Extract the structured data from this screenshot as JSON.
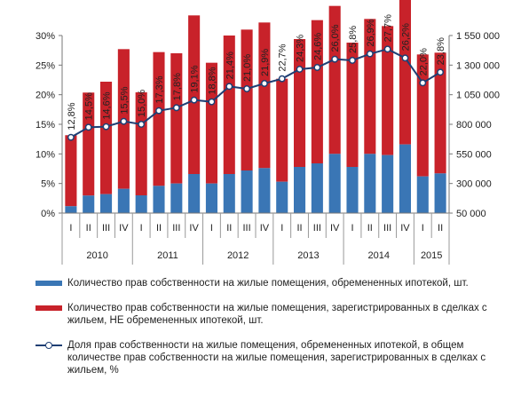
{
  "chart_data": {
    "type": "bar+line",
    "title": "",
    "left_axis": {
      "ticks": [
        "0%",
        "5%",
        "10%",
        "15%",
        "20%",
        "25%",
        "30%"
      ],
      "range": [
        0,
        30
      ]
    },
    "right_axis": {
      "ticks": [
        "50 000",
        "300 000",
        "550 000",
        "800 000",
        "1 050 000",
        "1 300 000",
        "1 550 000"
      ],
      "range": [
        50000,
        1550000
      ]
    },
    "quarters": [
      "I",
      "II",
      "III",
      "IV",
      "I",
      "II",
      "III",
      "IV",
      "I",
      "II",
      "III",
      "IV",
      "I",
      "II",
      "III",
      "IV",
      "I",
      "II",
      "III",
      "IV",
      "I",
      "II"
    ],
    "years": [
      {
        "label": "2010",
        "count": 4
      },
      {
        "label": "2011",
        "count": 4
      },
      {
        "label": "2012",
        "count": 4
      },
      {
        "label": "2013",
        "count": 4
      },
      {
        "label": "2014",
        "count": 4
      },
      {
        "label": "2015",
        "count": 2
      }
    ],
    "series": [
      {
        "name": "Количество прав собственности на жилые помещения, обремененных ипотекой, шт.",
        "kind": "bar",
        "axis": "right",
        "color": "#3a76b5",
        "values": [
          58000,
          148000,
          160000,
          205000,
          150000,
          230000,
          250000,
          330000,
          250000,
          330000,
          360000,
          380000,
          265000,
          390000,
          420000,
          500000,
          390000,
          500000,
          490000,
          580000,
          310000,
          335000
        ]
      },
      {
        "name": "Количество прав собственности на жилые помещения, зарегистрированных в сделках с жильем, НЕ обремененных ипотекой, шт.",
        "kind": "bar",
        "axis": "right",
        "color": "#c8222a",
        "values": [
          600000,
          870000,
          950000,
          1180000,
          870000,
          1130000,
          1100000,
          1340000,
          1020000,
          1170000,
          1190000,
          1230000,
          870000,
          1080000,
          1210000,
          1250000,
          1050000,
          1140000,
          1090000,
          1270000,
          1030000,
          1020000
        ]
      },
      {
        "name": "Доля прав собственности на жилые помещения, обремененных ипотекой, в общем количестве прав собственности на жилые помещения, зарегистрированных в сделках с жильем, %",
        "kind": "line",
        "axis": "left",
        "color": "#1f3f74",
        "values": [
          12.8,
          14.5,
          14.6,
          15.5,
          15.0,
          17.3,
          17.8,
          19.1,
          18.8,
          21.4,
          21.0,
          21.9,
          22.7,
          24.3,
          24.6,
          26.0,
          25.8,
          26.9,
          27.7,
          26.2,
          22.0,
          23.8
        ],
        "labels": [
          "12,8%",
          "14,5%",
          "14,6%",
          "15,5%",
          "15,0%",
          "17,3%",
          "17,8%",
          "19,1%",
          "18,8%",
          "21,4%",
          "21,0%",
          "21,9%",
          "22,7%",
          "24,3%",
          "24,6%",
          "26,0%",
          "25,8%",
          "26,9%",
          "27,7%",
          "26,2%",
          "22,0%",
          "23,8%"
        ]
      }
    ],
    "legend_position": "bottom",
    "grid": false
  },
  "legend": [
    {
      "text": "Количество прав собственности на жилые помещения, обремененных ипотекой, шт.",
      "color": "#3a76b5"
    },
    {
      "text": "Количество прав собственности на жилые помещения, зарегистрированных в сделках с жильем, НЕ обремененных ипотекой, шт.",
      "color": "#c8222a"
    },
    {
      "text": "Доля прав собственности на жилые помещения, обремененных ипотекой, в общем количестве прав собственности на жилые помещения, зарегистрированных в сделках с жильем, %",
      "color": "#1f3f74"
    }
  ]
}
